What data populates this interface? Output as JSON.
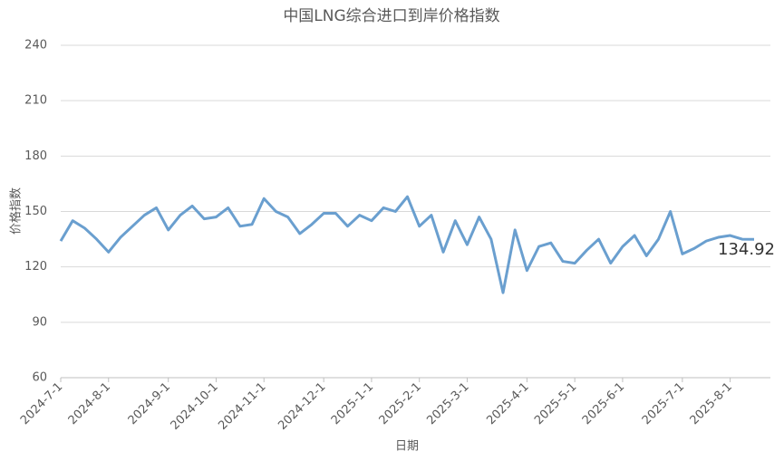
{
  "chart_data": {
    "type": "line",
    "title": "中国LNG综合进口到岸价格指数",
    "x_label": "日期",
    "y_label": "价格指数",
    "categories": [
      "2024-7-1",
      null,
      null,
      null,
      "2024-8-1",
      null,
      null,
      null,
      null,
      "2024-9-1",
      null,
      null,
      null,
      "2024-10-1",
      null,
      null,
      null,
      "2024-11-1",
      null,
      null,
      null,
      null,
      "2024-12-1",
      null,
      null,
      null,
      "2025-1-1",
      null,
      null,
      null,
      "2025-2-1",
      null,
      null,
      null,
      "2025-3-1",
      null,
      null,
      null,
      null,
      "2025-4-1",
      null,
      null,
      null,
      "2025-5-1",
      null,
      null,
      null,
      "2025-6-1",
      null,
      null,
      null,
      null,
      "2025-7-1",
      null,
      null,
      null,
      "2025-8-1",
      null,
      null
    ],
    "series": [
      {
        "name": "价格指数",
        "color": "#6a9fcf",
        "values": [
          134,
          145,
          141,
          135,
          128,
          136,
          142,
          148,
          152,
          140,
          148,
          153,
          146,
          147,
          152,
          142,
          143,
          157,
          150,
          147,
          138,
          143,
          149,
          149,
          142,
          148,
          145,
          152,
          150,
          158,
          142,
          148,
          128,
          145,
          132,
          147,
          135,
          106,
          140,
          118,
          131,
          133,
          123,
          122,
          129,
          135,
          122,
          131,
          137,
          126,
          135,
          150,
          127,
          130,
          134,
          136,
          137,
          135,
          134.92
        ]
      }
    ],
    "ylim": [
      60,
      240
    ],
    "yticks": [
      60,
      90,
      120,
      150,
      180,
      210,
      240
    ],
    "grid": true
  }
}
